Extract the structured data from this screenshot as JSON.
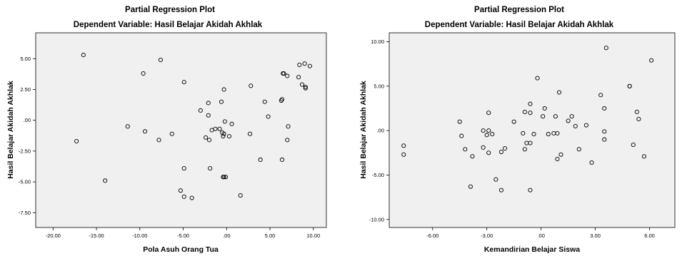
{
  "chart_data": [
    {
      "type": "scatter",
      "title": "Partial Regression Plot",
      "subtitle": "Dependent Variable: Hasil Belajar Akidah Akhlak",
      "xlabel": "Pola Asuh Orang Tua",
      "ylabel": "Hasil Belajar Akidah Akhlak",
      "xlim": [
        -22,
        11.5
      ],
      "ylim": [
        -8.7,
        7.1
      ],
      "xticks": [
        -20,
        -15,
        -10,
        -5,
        0,
        5,
        10
      ],
      "xtick_labels": [
        "-20.00",
        "-15.00",
        "-10.00",
        "-5.00",
        ".00",
        "5.00",
        "10.00"
      ],
      "yticks": [
        -7.5,
        -5,
        -2.5,
        0,
        2.5,
        5
      ],
      "ytick_labels": [
        "-7.50",
        "-5.00",
        "-2.50",
        ".00",
        "2.50",
        "5.00"
      ],
      "grid": false,
      "plot_background": "#f0f0f0",
      "x": [
        -16.5,
        -9.6,
        -7.6,
        -4.9,
        -17.3,
        -11.4,
        -9.4,
        -7.8,
        -6.3,
        -14.0,
        -3.0,
        -2.1,
        -2.1,
        -1.7,
        -1.3,
        -2.4,
        -2.0,
        -0.8,
        -0.5,
        -0.3,
        -0.4,
        -0.2,
        -0.6,
        -0.3,
        0.3,
        0.6,
        -0.3,
        -0.4,
        -4.9,
        -1.9,
        -0.1,
        -5.3,
        -4.9,
        -4.0,
        1.6,
        2.8,
        2.7,
        3.9,
        4.4,
        4.8,
        6.3,
        6.4,
        6.5,
        6.6,
        7.0,
        7.1,
        6.4,
        7.0,
        8.3,
        8.4,
        8.7,
        9.0,
        9.1,
        9.1,
        9.6
      ],
      "y": [
        5.3,
        3.8,
        4.9,
        3.1,
        -1.7,
        -0.5,
        -0.9,
        -1.6,
        -1.1,
        -4.9,
        0.8,
        1.4,
        0.4,
        -0.8,
        -0.7,
        -1.4,
        -1.6,
        -0.7,
        -1.0,
        -1.1,
        -1.3,
        -0.1,
        1.5,
        2.5,
        -1.3,
        -0.3,
        -4.6,
        -4.6,
        -3.9,
        -3.9,
        -4.6,
        -5.7,
        -6.2,
        -6.3,
        -6.1,
        2.8,
        -1.1,
        -3.2,
        1.5,
        0.3,
        1.6,
        1.7,
        3.8,
        3.8,
        3.6,
        -0.5,
        -3.2,
        -1.6,
        3.5,
        4.5,
        2.9,
        4.6,
        2.7,
        2.6,
        4.4
      ]
    },
    {
      "type": "scatter",
      "title": "Partial Regression Plot",
      "subtitle": "Dependent Variable: Hasil Belajar Akidah Akhlak",
      "xlabel": "Kemandirian Belajar Siswa",
      "ylabel": "Hasil Belajar Akidah Akhlak",
      "xlim": [
        -8.4,
        7.4
      ],
      "ylim": [
        -10.9,
        11.0
      ],
      "xticks": [
        -6,
        -3,
        0,
        3,
        6
      ],
      "xtick_labels": [
        "-6.00",
        "-3.00",
        ".00",
        "3.00",
        "6.00"
      ],
      "yticks": [
        -10,
        -5,
        0,
        5,
        10
      ],
      "ytick_labels": [
        "-10.00",
        "-5.00",
        ".00",
        "5.00",
        "10.00"
      ],
      "grid": false,
      "plot_background": "#f0f0f0",
      "x": [
        -7.6,
        -7.6,
        -4.5,
        -4.4,
        -4.2,
        -3.9,
        -3.8,
        -3.2,
        -3.2,
        -3.0,
        -2.9,
        -2.9,
        -2.7,
        -2.9,
        -2.5,
        -2.2,
        -2.0,
        -2.2,
        -1.5,
        -1.0,
        -0.9,
        -0.8,
        -0.6,
        -0.6,
        -0.6,
        -0.6,
        -0.4,
        -0.9,
        -0.2,
        0.1,
        0.2,
        0.4,
        0.7,
        0.8,
        0.9,
        0.9,
        1.0,
        1.1,
        1.5,
        1.7,
        1.9,
        2.1,
        2.5,
        2.8,
        3.3,
        3.5,
        3.5,
        3.5,
        3.6,
        4.9,
        4.9,
        5.1,
        5.3,
        5.4,
        5.7,
        6.1
      ],
      "y": [
        -1.7,
        -2.7,
        1.0,
        -0.6,
        -2.1,
        -6.3,
        -2.9,
        0.0,
        -1.9,
        -0.5,
        0.0,
        -2.5,
        -0.4,
        2.0,
        -5.5,
        -2.4,
        -2.0,
        -6.7,
        1.0,
        -0.3,
        2.1,
        -1.4,
        -1.4,
        2.0,
        3.0,
        -6.7,
        -0.4,
        -2.1,
        5.9,
        1.6,
        2.5,
        -0.4,
        -0.3,
        1.6,
        -0.3,
        -3.2,
        4.3,
        -2.7,
        1.1,
        1.6,
        0.5,
        -2.1,
        0.6,
        -3.6,
        4.0,
        -0.1,
        -1.0,
        2.5,
        9.3,
        5.0,
        5.0,
        -1.6,
        2.1,
        1.3,
        -2.9,
        7.9
      ]
    }
  ]
}
